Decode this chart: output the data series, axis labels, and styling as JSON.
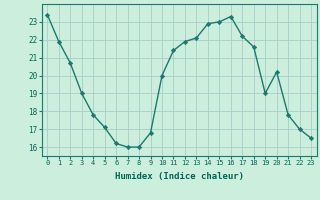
{
  "x": [
    0,
    1,
    2,
    3,
    4,
    5,
    6,
    7,
    8,
    9,
    10,
    11,
    12,
    13,
    14,
    15,
    16,
    17,
    18,
    19,
    20,
    21,
    22,
    23
  ],
  "y": [
    23.4,
    21.9,
    20.7,
    19.0,
    17.8,
    17.1,
    16.2,
    16.0,
    16.0,
    16.8,
    20.0,
    21.4,
    21.9,
    22.1,
    22.9,
    23.0,
    23.3,
    22.2,
    21.6,
    19.0,
    20.2,
    17.8,
    17.0,
    16.5
  ],
  "xlabel": "Humidex (Indice chaleur)",
  "ylim": [
    15.5,
    24.0
  ],
  "xlim": [
    -0.5,
    23.5
  ],
  "yticks": [
    16,
    17,
    18,
    19,
    20,
    21,
    22,
    23
  ],
  "xticks": [
    0,
    1,
    2,
    3,
    4,
    5,
    6,
    7,
    8,
    9,
    10,
    11,
    12,
    13,
    14,
    15,
    16,
    17,
    18,
    19,
    20,
    21,
    22,
    23
  ],
  "line_color": "#1a7a6e",
  "marker": "D",
  "marker_size": 2.2,
  "bg_color": "#cceedd",
  "grid_color": "#aacccc",
  "axis_label_color": "#006655",
  "tick_label_color": "#006655",
  "xlabel_color": "#006655"
}
